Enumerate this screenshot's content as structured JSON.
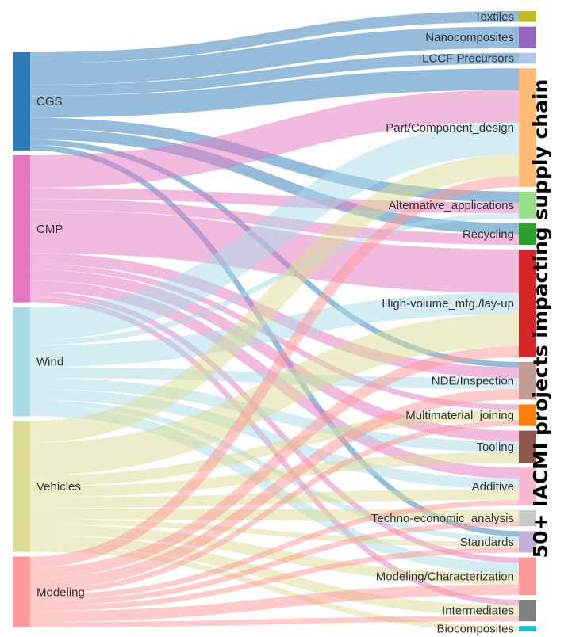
{
  "side_title": "50+ IACMI projects impacting supply chain",
  "sources": [
    {
      "name": "CGS",
      "color": "#2e7ab8"
    },
    {
      "name": "CMP",
      "color": "#e377c2"
    },
    {
      "name": "Wind",
      "color": "#a8dbe6"
    },
    {
      "name": "Vehicles",
      "color": "#dcdc96"
    },
    {
      "name": "Modeling",
      "color": "#ff9896"
    }
  ],
  "targets": [
    {
      "name": "Textiles",
      "color": "#bcbd22"
    },
    {
      "name": "Nanocomposites",
      "color": "#9467bd"
    },
    {
      "name": "LCCF Precursors",
      "color": "#aec7e8"
    },
    {
      "name": "Part/Component_design",
      "color": "#ffbb78"
    },
    {
      "name": "Alternative_applications",
      "color": "#98df8a"
    },
    {
      "name": "Recycling",
      "color": "#2ca02c"
    },
    {
      "name": "High-volume_mfg./lay-up",
      "color": "#d62728"
    },
    {
      "name": "NDE/Inspection",
      "color": "#c49c94"
    },
    {
      "name": "Multimaterial_joining",
      "color": "#ff7f0e"
    },
    {
      "name": "Tooling",
      "color": "#8c564b"
    },
    {
      "name": "Additive",
      "color": "#f7b6d2"
    },
    {
      "name": "Techno-economic_analysis",
      "color": "#c7c7c7"
    },
    {
      "name": "Standards",
      "color": "#c5b0d5"
    },
    {
      "name": "Modeling/Characterization",
      "color": "#ff9896"
    },
    {
      "name": "Intermediates",
      "color": "#7f7f7f"
    },
    {
      "name": "Biocomposites",
      "color": "#17becf"
    }
  ],
  "chart_data": {
    "type": "sankey",
    "sources": [
      "CGS",
      "CMP",
      "Wind",
      "Vehicles",
      "Modeling"
    ],
    "targets": [
      "Textiles",
      "Nanocomposites",
      "LCCF Precursors",
      "Part/Component_design",
      "Alternative_applications",
      "Recycling",
      "High-volume_mfg./lay-up",
      "NDE/Inspection",
      "Multimaterial_joining",
      "Tooling",
      "Additive",
      "Techno-economic_analysis",
      "Standards",
      "Modeling/Characterization",
      "Intermediates",
      "Biocomposites"
    ],
    "links": [
      {
        "source": "CGS",
        "target": "Textiles",
        "value": 1
      },
      {
        "source": "CGS",
        "target": "Nanocomposites",
        "value": 2
      },
      {
        "source": "CGS",
        "target": "LCCF Precursors",
        "value": 1
      },
      {
        "source": "CGS",
        "target": "Part/Component_design",
        "value": 2
      },
      {
        "source": "CGS",
        "target": "Alternative_applications",
        "value": 1
      },
      {
        "source": "CGS",
        "target": "Recycling",
        "value": 1
      },
      {
        "source": "CGS",
        "target": "NDE/Inspection",
        "value": 0.5
      },
      {
        "source": "CGS",
        "target": "Standards",
        "value": 0.5
      },
      {
        "source": "CMP",
        "target": "Part/Component_design",
        "value": 3
      },
      {
        "source": "CMP",
        "target": "Alternative_applications",
        "value": 1
      },
      {
        "source": "CMP",
        "target": "Recycling",
        "value": 1
      },
      {
        "source": "CMP",
        "target": "High-volume_mfg./lay-up",
        "value": 4
      },
      {
        "source": "CMP",
        "target": "NDE/Inspection",
        "value": 1
      },
      {
        "source": "CMP",
        "target": "Multimaterial_joining",
        "value": 0.5
      },
      {
        "source": "CMP",
        "target": "Tooling",
        "value": 1
      },
      {
        "source": "CMP",
        "target": "Additive",
        "value": 1
      },
      {
        "source": "CMP",
        "target": "Modeling/Characterization",
        "value": 0.5
      },
      {
        "source": "CMP",
        "target": "Intermediates",
        "value": 0.5
      },
      {
        "source": "Wind",
        "target": "Part/Component_design",
        "value": 3
      },
      {
        "source": "Wind",
        "target": "Alternative_applications",
        "value": 0.5
      },
      {
        "source": "Wind",
        "target": "High-volume_mfg./lay-up",
        "value": 2
      },
      {
        "source": "Wind",
        "target": "NDE/Inspection",
        "value": 1
      },
      {
        "source": "Wind",
        "target": "Tooling",
        "value": 1
      },
      {
        "source": "Wind",
        "target": "Additive",
        "value": 1
      },
      {
        "source": "Wind",
        "target": "Standards",
        "value": 0.5
      },
      {
        "source": "Wind",
        "target": "Modeling/Characterization",
        "value": 1
      },
      {
        "source": "Vehicles",
        "target": "Part/Component_design",
        "value": 2
      },
      {
        "source": "Vehicles",
        "target": "High-volume_mfg./lay-up",
        "value": 3
      },
      {
        "source": "Vehicles",
        "target": "Multimaterial_joining",
        "value": 1
      },
      {
        "source": "Vehicles",
        "target": "Tooling",
        "value": 1
      },
      {
        "source": "Vehicles",
        "target": "Additive",
        "value": 1
      },
      {
        "source": "Vehicles",
        "target": "Techno-economic_analysis",
        "value": 1
      },
      {
        "source": "Vehicles",
        "target": "Standards",
        "value": 0.5
      },
      {
        "source": "Vehicles",
        "target": "Modeling/Characterization",
        "value": 1
      },
      {
        "source": "Vehicles",
        "target": "Intermediates",
        "value": 1
      },
      {
        "source": "Vehicles",
        "target": "Biocomposites",
        "value": 0.5
      },
      {
        "source": "Modeling",
        "target": "Part/Component_design",
        "value": 1
      },
      {
        "source": "Modeling",
        "target": "High-volume_mfg./lay-up",
        "value": 1
      },
      {
        "source": "Modeling",
        "target": "NDE/Inspection",
        "value": 1
      },
      {
        "source": "Modeling",
        "target": "Multimaterial_joining",
        "value": 0.5
      },
      {
        "source": "Modeling",
        "target": "Additive",
        "value": 0.5
      },
      {
        "source": "Modeling",
        "target": "Techno-economic_analysis",
        "value": 0.5
      },
      {
        "source": "Modeling",
        "target": "Standards",
        "value": 0.5
      },
      {
        "source": "Modeling",
        "target": "Modeling/Characterization",
        "value": 1
      },
      {
        "source": "Modeling",
        "target": "Intermediates",
        "value": 0.5
      }
    ]
  }
}
